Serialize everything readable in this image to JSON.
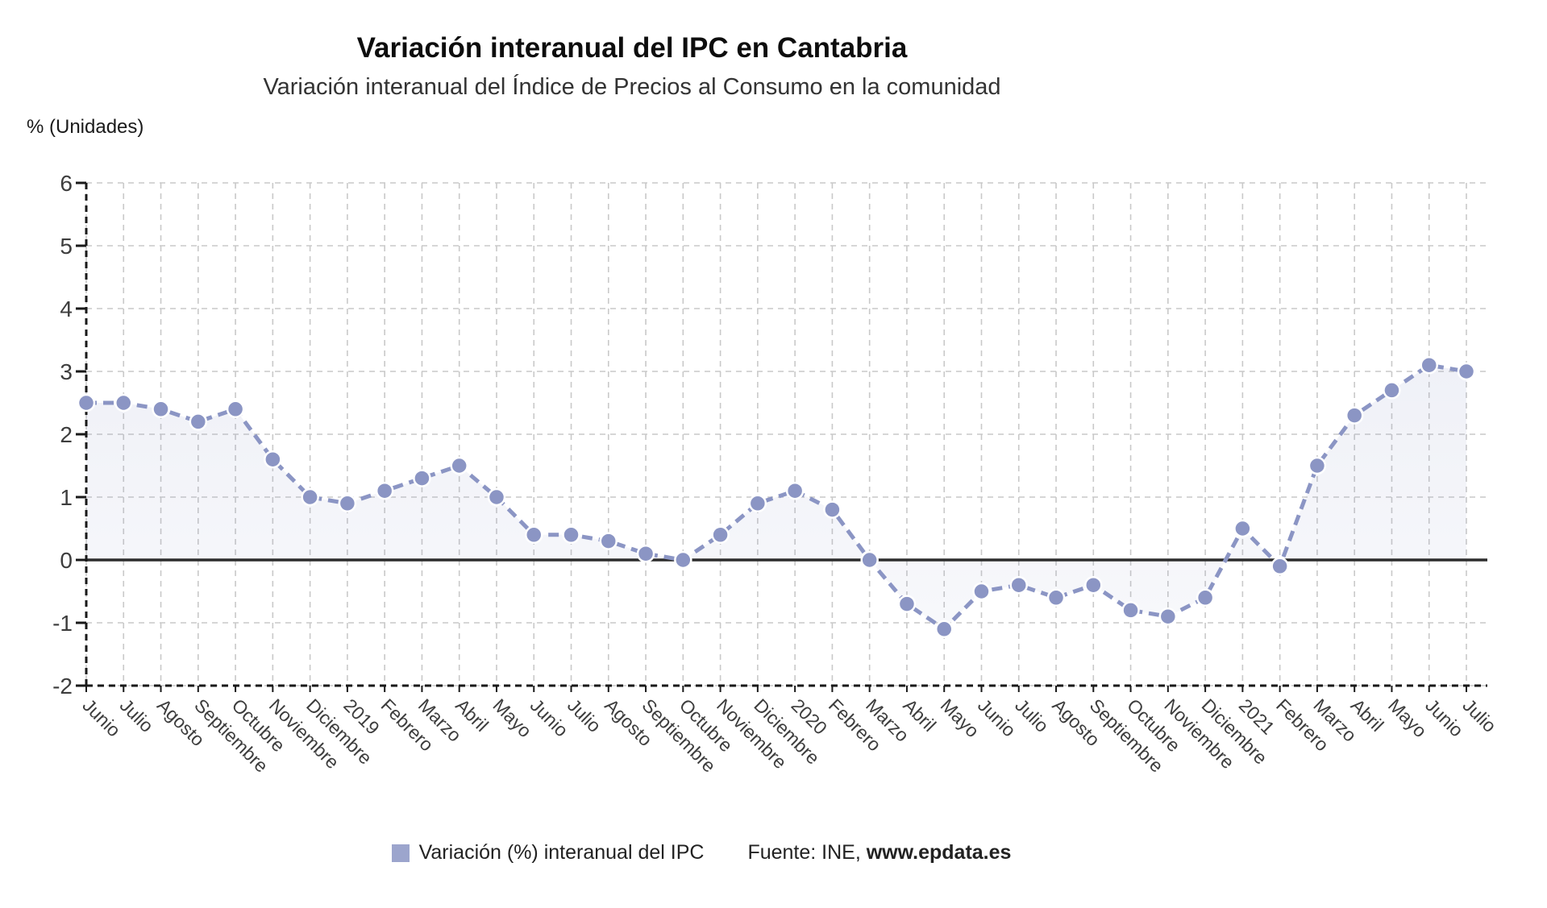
{
  "header": {
    "title": "Variación interanual del IPC en Cantabria",
    "subtitle": "Variación interanual del Índice de Precios al Consumo en la comunidad"
  },
  "chart_data": {
    "type": "line",
    "title": "Variación interanual del IPC en Cantabria",
    "subtitle": "Variación interanual del Índice de Precios al Consumo en la comunidad",
    "ylabel": "% (Unidades)",
    "xlabel": "",
    "ylim": [
      -2,
      6
    ],
    "yticks": [
      "6",
      "5",
      "4",
      "3",
      "2",
      "1",
      "0",
      "-1",
      "-2"
    ],
    "grid": true,
    "grid_style": "dashed",
    "legend_position": "bottom",
    "categories": [
      "Junio",
      "Julio",
      "Agosto",
      "Septiembre",
      "Octubre",
      "Noviembre",
      "Diciembre",
      "2019",
      "Febrero",
      "Marzo",
      "Abril",
      "Mayo",
      "Junio",
      "Julio",
      "Agosto",
      "Septiembre",
      "Octubre",
      "Noviembre",
      "Diciembre",
      "2020",
      "Febrero",
      "Marzo",
      "Abril",
      "Mayo",
      "Junio",
      "Julio",
      "Agosto",
      "Septiembre",
      "Octubre",
      "Noviembre",
      "Diciembre",
      "2021",
      "Febrero",
      "Marzo",
      "Abril",
      "Mayo",
      "Junio",
      "Julio"
    ],
    "series": [
      {
        "name": "Variación (%) interanual del IPC",
        "color": "#8b95c4",
        "marker": "circle",
        "line_style": "dashed",
        "values": [
          2.5,
          2.5,
          2.4,
          2.2,
          2.4,
          1.6,
          1.0,
          0.9,
          1.1,
          1.3,
          1.5,
          1.0,
          0.4,
          0.4,
          0.3,
          0.1,
          0.0,
          0.4,
          0.9,
          1.1,
          0.8,
          0.0,
          -0.7,
          -1.1,
          -0.5,
          -0.4,
          -0.6,
          -0.4,
          -0.8,
          -0.9,
          -0.6,
          0.5,
          -0.1,
          1.5,
          2.3,
          2.7,
          3.1,
          3.0
        ]
      }
    ]
  },
  "legend": {
    "source_prefix": "Fuente: INE, ",
    "source_link": "www.epdata.es"
  },
  "colors": {
    "series": "#8b95c4",
    "area_fill": "#8b95c4",
    "zero_line": "#2d2d2d",
    "grid": "#c9c9c9",
    "axis": "#191919",
    "tick_text": "#3d3d3d"
  }
}
